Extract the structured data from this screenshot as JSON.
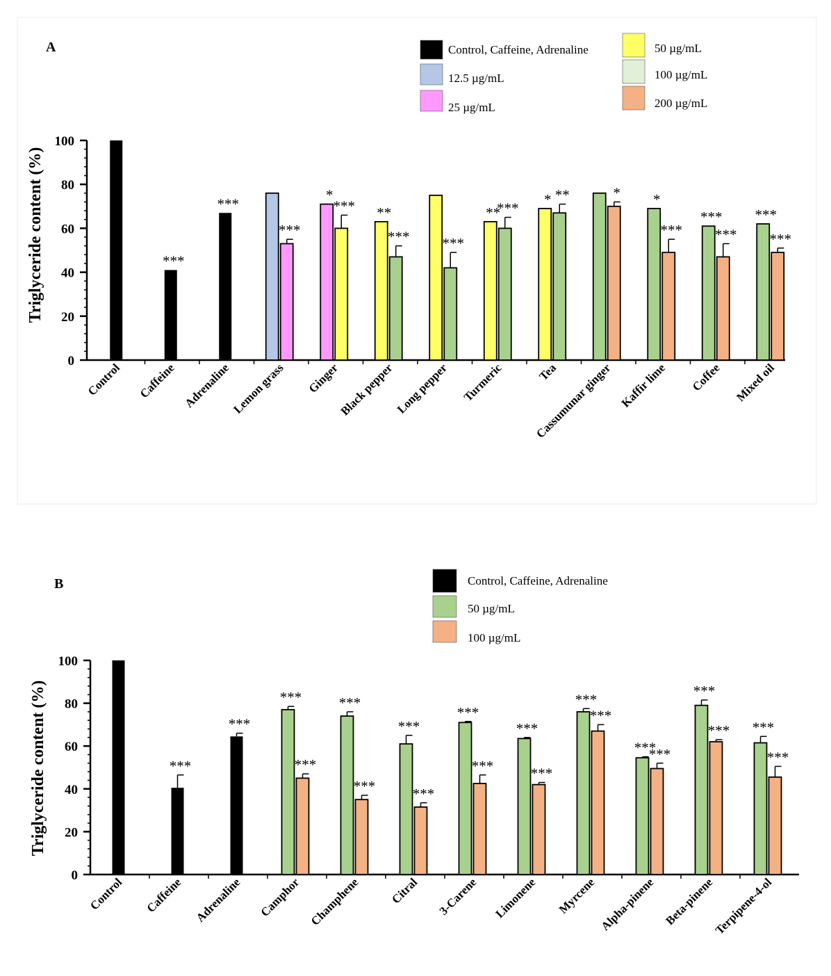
{
  "chart_data": [
    {
      "type": "bar",
      "panel": "A",
      "ylabel": "Triglyceride content (%)",
      "ylim": [
        0,
        100
      ],
      "yticks": [
        0,
        20,
        40,
        60,
        80,
        100
      ],
      "categories": [
        "Control",
        "Caffeine",
        "Adrenaline",
        "Lemon grass",
        "Ginger",
        "Black pepper",
        "Long pepper",
        "Turmeric",
        "Tea",
        "Cassumunar ginger",
        "Kaffir lime",
        "Coffee",
        "Mixed oil"
      ],
      "legend": [
        {
          "label": "Control, Caffeine, Adrenaline",
          "color": "#000000"
        },
        {
          "label": "12.5 µg/mL",
          "color": "#b4c7e7"
        },
        {
          "label": "25 µg/mL",
          "color": "#ff99ff"
        },
        {
          "label": "50 µg/mL",
          "color": "#ffff66"
        },
        {
          "label": "100 µg/mL",
          "color": "#e2efd9"
        },
        {
          "label": "200 µg/mL",
          "color": "#f4b183"
        }
      ],
      "groups": [
        {
          "bars": [
            {
              "value": 100,
              "err": 0,
              "color": "#000000",
              "sig": ""
            }
          ]
        },
        {
          "bars": [
            {
              "value": 41,
              "err": 0,
              "color": "#000000",
              "sig": "***"
            }
          ]
        },
        {
          "bars": [
            {
              "value": 67,
              "err": 0,
              "color": "#000000",
              "sig": "***"
            }
          ]
        },
        {
          "bars": [
            {
              "value": 76,
              "err": 0,
              "color": "#b4c7e7",
              "sig": ""
            },
            {
              "value": 53,
              "err": 2,
              "color": "#ff99ff",
              "sig": "***"
            }
          ]
        },
        {
          "bars": [
            {
              "value": 71,
              "err": 0,
              "color": "#ff99ff",
              "sig": "*"
            },
            {
              "value": 60,
              "err": 6,
              "color": "#ffff66",
              "sig": "***"
            }
          ]
        },
        {
          "bars": [
            {
              "value": 63,
              "err": 0,
              "color": "#ffff66",
              "sig": "**"
            },
            {
              "value": 47,
              "err": 5,
              "color": "#a9d18e",
              "sig": "***"
            }
          ]
        },
        {
          "bars": [
            {
              "value": 75,
              "err": 0,
              "color": "#ffff66",
              "sig": ""
            },
            {
              "value": 42,
              "err": 7,
              "color": "#a9d18e",
              "sig": "***"
            }
          ]
        },
        {
          "bars": [
            {
              "value": 63,
              "err": 0,
              "color": "#ffff66",
              "sig": "**"
            },
            {
              "value": 60,
              "err": 5,
              "color": "#a9d18e",
              "sig": "***"
            }
          ]
        },
        {
          "bars": [
            {
              "value": 69,
              "err": 0,
              "color": "#ffff66",
              "sig": "*"
            },
            {
              "value": 67,
              "err": 4,
              "color": "#a9d18e",
              "sig": "**"
            }
          ]
        },
        {
          "bars": [
            {
              "value": 76,
              "err": 0,
              "color": "#a9d18e",
              "sig": ""
            },
            {
              "value": 70,
              "err": 2,
              "color": "#f4b183",
              "sig": "*"
            }
          ]
        },
        {
          "bars": [
            {
              "value": 69,
              "err": 0,
              "color": "#a9d18e",
              "sig": "*"
            },
            {
              "value": 49,
              "err": 6,
              "color": "#f4b183",
              "sig": "***"
            }
          ]
        },
        {
          "bars": [
            {
              "value": 61,
              "err": 0,
              "color": "#a9d18e",
              "sig": "***"
            },
            {
              "value": 47,
              "err": 6,
              "color": "#f4b183",
              "sig": "***"
            }
          ]
        },
        {
          "bars": [
            {
              "value": 62,
              "err": 0,
              "color": "#a9d18e",
              "sig": "***"
            },
            {
              "value": 49,
              "err": 2,
              "color": "#f4b183",
              "sig": "***"
            }
          ]
        }
      ]
    },
    {
      "type": "bar",
      "panel": "B",
      "ylabel": "Triglyceride content (%)",
      "ylim": [
        0,
        100
      ],
      "yticks": [
        0,
        20,
        40,
        60,
        80,
        100
      ],
      "categories": [
        "Control",
        "Caffeine",
        "Adrenaline",
        "Camphor",
        "Champhene",
        "Citral",
        "3-Carene",
        "Limonene",
        "Myrcene",
        "Alpha-pinene",
        "Beta-pinene",
        "Terpipene-4-ol"
      ],
      "legend": [
        {
          "label": "Control, Caffeine, Adrenaline",
          "color": "#000000"
        },
        {
          "label": "50 µg/mL",
          "color": "#a9d18e"
        },
        {
          "label": "100 µg/mL",
          "color": "#f4b183"
        }
      ],
      "groups": [
        {
          "bars": [
            {
              "value": 100,
              "err": 0,
              "color": "#000000",
              "sig": ""
            }
          ]
        },
        {
          "bars": [
            {
              "value": 40.5,
              "err": 6,
              "color": "#000000",
              "sig": "***"
            }
          ]
        },
        {
          "bars": [
            {
              "value": 64.5,
              "err": 1.5,
              "color": "#000000",
              "sig": "***"
            }
          ]
        },
        {
          "bars": [
            {
              "value": 77,
              "err": 1.5,
              "color": "#a9d18e",
              "sig": "***"
            },
            {
              "value": 45,
              "err": 2,
              "color": "#f4b183",
              "sig": "***"
            }
          ]
        },
        {
          "bars": [
            {
              "value": 74,
              "err": 2,
              "color": "#a9d18e",
              "sig": "***"
            },
            {
              "value": 35,
              "err": 2,
              "color": "#f4b183",
              "sig": "***"
            }
          ]
        },
        {
          "bars": [
            {
              "value": 61,
              "err": 4,
              "color": "#a9d18e",
              "sig": "***"
            },
            {
              "value": 31.5,
              "err": 2,
              "color": "#f4b183",
              "sig": "***"
            }
          ]
        },
        {
          "bars": [
            {
              "value": 71,
              "err": 0.5,
              "color": "#a9d18e",
              "sig": "***"
            },
            {
              "value": 42.5,
              "err": 4,
              "color": "#f4b183",
              "sig": "***"
            }
          ]
        },
        {
          "bars": [
            {
              "value": 63.5,
              "err": 0.5,
              "color": "#a9d18e",
              "sig": "***"
            },
            {
              "value": 42,
              "err": 1,
              "color": "#f4b183",
              "sig": "***"
            }
          ]
        },
        {
          "bars": [
            {
              "value": 76,
              "err": 1.5,
              "color": "#a9d18e",
              "sig": "***"
            },
            {
              "value": 67,
              "err": 3,
              "color": "#f4b183",
              "sig": "***"
            }
          ]
        },
        {
          "bars": [
            {
              "value": 54.5,
              "err": 0.5,
              "color": "#a9d18e",
              "sig": "***"
            },
            {
              "value": 49.5,
              "err": 2.5,
              "color": "#f4b183",
              "sig": "***"
            }
          ]
        },
        {
          "bars": [
            {
              "value": 79,
              "err": 2.5,
              "color": "#a9d18e",
              "sig": "***"
            },
            {
              "value": 62,
              "err": 1,
              "color": "#f4b183",
              "sig": "***"
            }
          ]
        },
        {
          "bars": [
            {
              "value": 61.5,
              "err": 3,
              "color": "#a9d18e",
              "sig": "***"
            },
            {
              "value": 45.5,
              "err": 5,
              "color": "#f4b183",
              "sig": "***"
            }
          ]
        }
      ]
    }
  ]
}
